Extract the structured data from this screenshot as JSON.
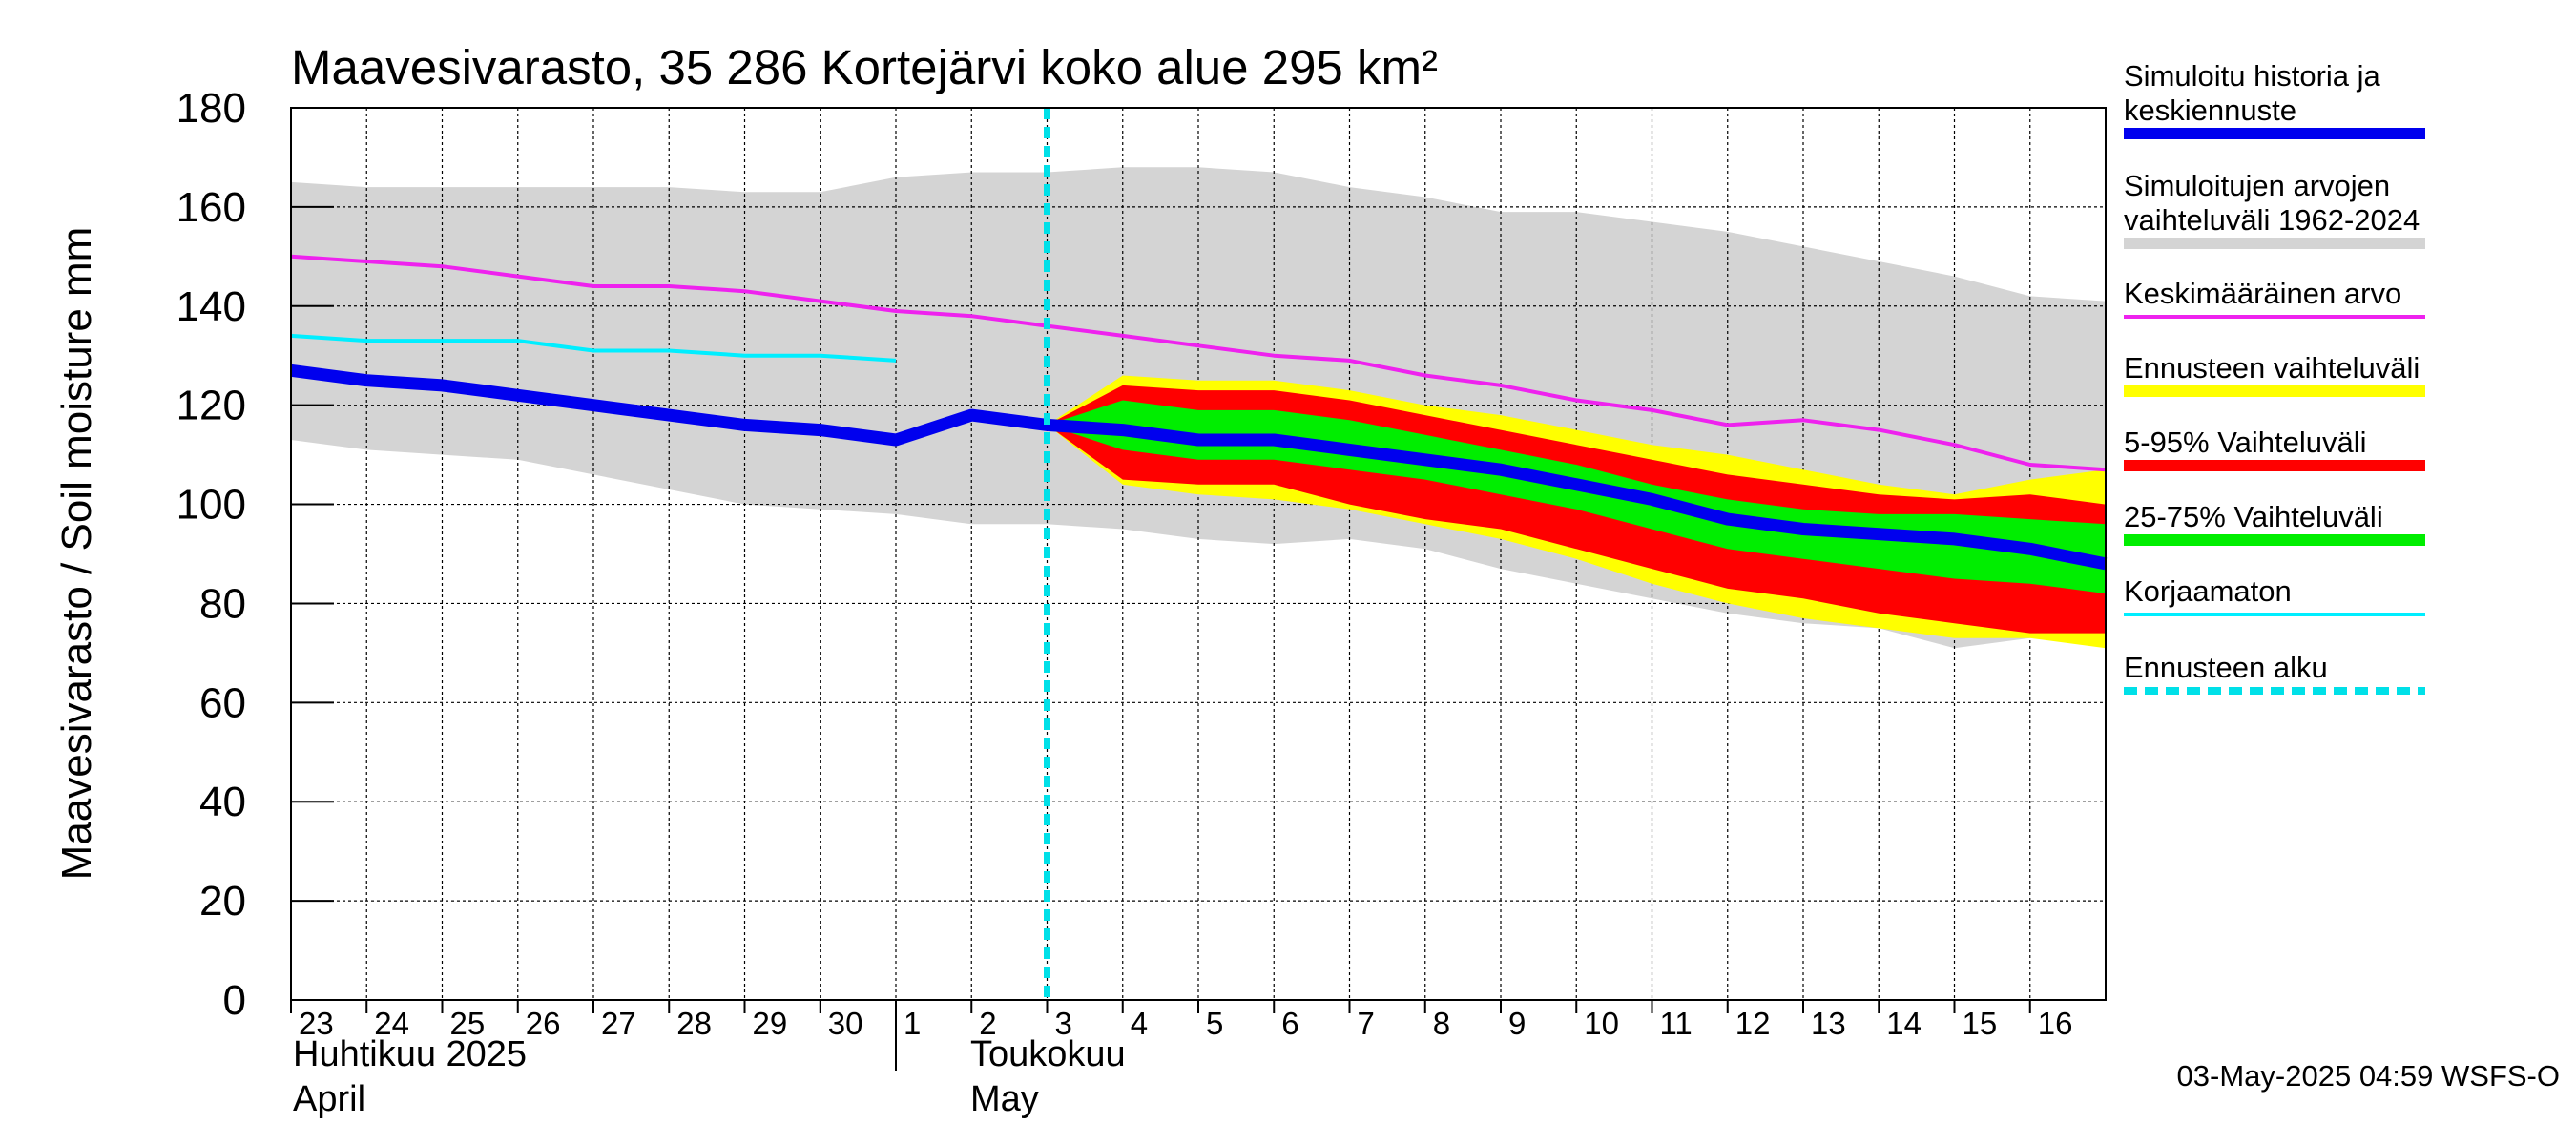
{
  "title": "Maavesivarasto, 35 286 Kortejärvi koko alue 295 km²",
  "footer": "03-May-2025 04:59 WSFS-O",
  "chart_data": {
    "type": "line",
    "title": "Maavesivarasto, 35 286 Kortejärvi koko alue 295 km²",
    "ylabel": "Maavesivarasto / Soil moisture   mm",
    "ylim": [
      0,
      180
    ],
    "yticks": [
      0,
      20,
      40,
      60,
      80,
      100,
      120,
      140,
      160,
      180
    ],
    "xlim": [
      0,
      24
    ],
    "x_tick_labels": [
      "23",
      "24",
      "25",
      "26",
      "27",
      "28",
      "29",
      "30",
      "1",
      "2",
      "3",
      "4",
      "5",
      "6",
      "7",
      "8",
      "9",
      "10",
      "11",
      "12",
      "13",
      "14",
      "15",
      "16"
    ],
    "months": [
      {
        "name": "Huhtikuu  2025",
        "name_en": "April",
        "start_index": 0
      },
      {
        "name": "Toukokuu",
        "name_en": "May",
        "start_index": 9
      }
    ],
    "forecast_start_x": 10.0,
    "colors": {
      "history": "#0000ee",
      "range_hist": "#d4d4d4",
      "mean": "#ee22ee",
      "forecast_range": "#ffff00",
      "p5_95": "#ff0000",
      "p25_75": "#00ee00",
      "uncorrected": "#00eeff",
      "forecast_start": "#00e0e8"
    },
    "series": {
      "range_1962_2024": {
        "x": [
          0,
          1,
          2,
          3,
          4,
          5,
          6,
          7,
          8,
          9,
          10,
          11,
          12,
          13,
          14,
          15,
          16,
          17,
          18,
          19,
          20,
          21,
          22,
          23,
          24
        ],
        "upper": [
          165,
          164,
          164,
          164,
          164,
          164,
          163,
          163,
          166,
          167,
          167,
          168,
          168,
          167,
          164,
          162,
          159,
          159,
          157,
          155,
          152,
          149,
          146,
          142,
          141
        ],
        "lower": [
          113,
          111,
          110,
          109,
          106,
          103,
          100,
          99,
          98,
          96,
          96,
          95,
          93,
          92,
          93,
          91,
          87,
          84,
          81,
          78,
          76,
          75,
          71,
          73,
          75
        ]
      },
      "mean": {
        "x": [
          0,
          1,
          2,
          3,
          4,
          5,
          6,
          7,
          8,
          9,
          10,
          11,
          12,
          13,
          14,
          15,
          16,
          17,
          18,
          19,
          20,
          21,
          22,
          23,
          24
        ],
        "y": [
          150,
          149,
          148,
          146,
          144,
          144,
          143,
          141,
          139,
          138,
          136,
          134,
          132,
          130,
          129,
          126,
          124,
          121,
          119,
          116,
          117,
          115,
          112,
          108,
          107
        ]
      },
      "uncorrected": {
        "x": [
          0,
          1,
          2,
          3,
          4,
          5,
          6,
          7,
          8
        ],
        "y": [
          134,
          133,
          133,
          133,
          131,
          131,
          130,
          130,
          129
        ]
      },
      "history_and_median": {
        "x": [
          0,
          1,
          2,
          3,
          4,
          5,
          6,
          7,
          8,
          9,
          10,
          11,
          12,
          13,
          14,
          15,
          16,
          17,
          18,
          19,
          20,
          21,
          22,
          23,
          24
        ],
        "y": [
          127,
          125,
          124,
          122,
          120,
          118,
          116,
          115,
          113,
          118,
          116,
          115,
          113,
          113,
          111,
          109,
          107,
          104,
          101,
          97,
          95,
          94,
          93,
          91,
          88
        ]
      },
      "forecast_range": {
        "x": [
          10,
          11,
          12,
          13,
          14,
          15,
          16,
          17,
          18,
          19,
          20,
          21,
          22,
          23,
          24
        ],
        "upper": [
          116,
          126,
          125,
          125,
          123,
          120,
          118,
          115,
          112,
          110,
          107,
          104,
          102,
          105,
          107
        ],
        "lower": [
          116,
          104,
          102,
          101,
          99,
          96,
          93,
          89,
          84,
          80,
          77,
          75,
          73,
          73,
          71
        ]
      },
      "p5_95": {
        "x": [
          10,
          11,
          12,
          13,
          14,
          15,
          16,
          17,
          18,
          19,
          20,
          21,
          22,
          23,
          24
        ],
        "upper": [
          116,
          124,
          123,
          123,
          121,
          118,
          115,
          112,
          109,
          106,
          104,
          102,
          101,
          102,
          100
        ],
        "lower": [
          116,
          105,
          104,
          104,
          100,
          97,
          95,
          91,
          87,
          83,
          81,
          78,
          76,
          74,
          74
        ]
      },
      "p25_75": {
        "x": [
          10,
          11,
          12,
          13,
          14,
          15,
          16,
          17,
          18,
          19,
          20,
          21,
          22,
          23,
          24
        ],
        "upper": [
          116,
          121,
          119,
          119,
          117,
          114,
          111,
          108,
          104,
          101,
          99,
          98,
          98,
          97,
          96
        ],
        "lower": [
          116,
          111,
          109,
          109,
          107,
          105,
          102,
          99,
          95,
          91,
          89,
          87,
          85,
          84,
          82
        ]
      }
    },
    "legend": [
      {
        "label": "Simuloitu historia ja keskiennuste",
        "label_lines": [
          "Simuloitu historia ja",
          "keskiennuste"
        ],
        "color": "#0000ee",
        "style": "thick"
      },
      {
        "label": "Simuloitujen arvojen vaihteluväli 1962-2024",
        "label_lines": [
          "Simuloitujen arvojen",
          "vaihteluväli 1962-2024"
        ],
        "color": "#d4d4d4",
        "style": "thick"
      },
      {
        "label": "Keskimääräinen arvo",
        "label_lines": [
          "Keskimääräinen arvo"
        ],
        "color": "#ee22ee",
        "style": "thin"
      },
      {
        "label": "Ennusteen vaihteluväli",
        "label_lines": [
          "Ennusteen vaihteluväli"
        ],
        "color": "#ffff00",
        "style": "thick"
      },
      {
        "label": "5-95% Vaihteluväli",
        "label_lines": [
          "5-95% Vaihteluväli"
        ],
        "color": "#ff0000",
        "style": "thick"
      },
      {
        "label": "25-75% Vaihteluväli",
        "label_lines": [
          "25-75% Vaihteluväli"
        ],
        "color": "#00ee00",
        "style": "thick"
      },
      {
        "label": "Korjaamaton",
        "label_lines": [
          "Korjaamaton"
        ],
        "color": "#00eeff",
        "style": "thin"
      },
      {
        "label": "Ennusteen alku",
        "label_lines": [
          "Ennusteen alku"
        ],
        "color": "#00e0e8",
        "style": "dashed"
      }
    ]
  }
}
